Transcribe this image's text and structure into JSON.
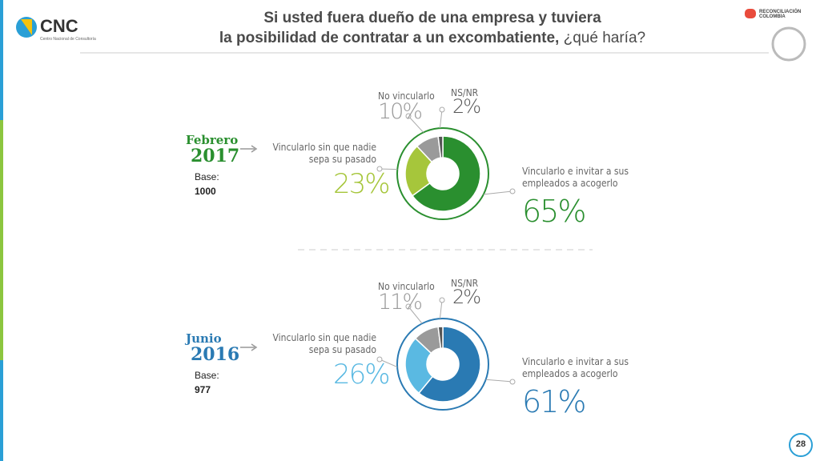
{
  "header": {
    "logo": "CNC",
    "logo_subtitle": "Centro Nacional de Consultoría",
    "title_line1": "Si usted fuera dueño de una empresa y tuviera",
    "title_line2_bold": "la posibilidad de contratar a un excombatiente,",
    "title_line2_regular": "¿qué haría?",
    "partner_logo": "RECONCILIACIÓN COLOMBIA"
  },
  "footer": {
    "page": "28"
  },
  "chart_data": [
    {
      "type": "donut",
      "period": "Febrero",
      "year": "2017",
      "base_label": "Base:",
      "base": "1000",
      "categories": [
        "Vincularlo e invitar a sus empleados a acogerlo",
        "Vincularlo sin que nadie sepa su pasado",
        "No vincularlo",
        "NS/NR"
      ],
      "values": [
        65,
        23,
        10,
        2
      ],
      "value_labels": [
        "65%",
        "23%",
        "10%",
        "2%"
      ],
      "colors": [
        "#2a8f2f",
        "#a6c63b",
        "#9a9a9a",
        "#555555"
      ]
    },
    {
      "type": "donut",
      "period": "Junio",
      "year": "2016",
      "base_label": "Base:",
      "base": "977",
      "categories": [
        "Vincularlo e invitar a sus empleados a acogerlo",
        "Vincularlo sin que nadie sepa su pasado",
        "No vincularlo",
        "NS/NR"
      ],
      "values": [
        61,
        26,
        11,
        2
      ],
      "value_labels": [
        "61%",
        "26%",
        "11%",
        "2%"
      ],
      "colors": [
        "#2a7ab3",
        "#5ab9e2",
        "#9a9a9a",
        "#555555"
      ]
    }
  ]
}
